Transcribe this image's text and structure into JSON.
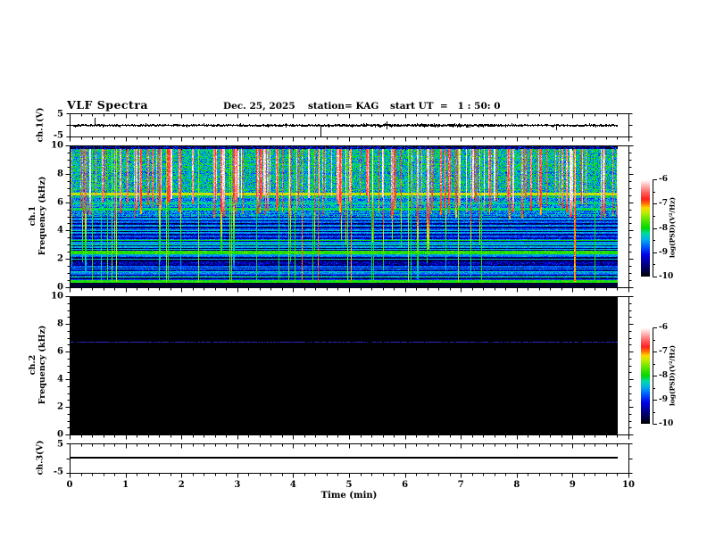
{
  "header": {
    "title": "VLF Spectra",
    "date": "Dec. 25, 2025",
    "station": "station= KAG",
    "start_ut": "start UT  =   1 : 50: 0"
  },
  "chart_data": {
    "type": "multi-panel-spectrogram",
    "x": {
      "label": "Time (min)",
      "range": [
        0,
        10
      ],
      "data_end": 9.8,
      "tick_labels": [
        "0",
        "1",
        "2",
        "3",
        "4",
        "5",
        "6",
        "7",
        "8",
        "9",
        "10"
      ],
      "minor_step": 0.2
    },
    "colorbar": {
      "label": "log(PSD)(V²/Hz)",
      "tick_labels": [
        "-6",
        "-7",
        "-8",
        "-9",
        "-10"
      ],
      "value_range": [
        -10,
        -6
      ],
      "colormap_stops": [
        [
          0.0,
          "#000000"
        ],
        [
          0.06,
          "#000048"
        ],
        [
          0.14,
          "#000098"
        ],
        [
          0.22,
          "#0000e8"
        ],
        [
          0.3,
          "#0054ff"
        ],
        [
          0.38,
          "#00b0e8"
        ],
        [
          0.44,
          "#00d8a8"
        ],
        [
          0.5,
          "#00d800"
        ],
        [
          0.58,
          "#58e400"
        ],
        [
          0.66,
          "#c0ec00"
        ],
        [
          0.71,
          "#ffd800"
        ],
        [
          0.75,
          "#ff7800"
        ],
        [
          0.8,
          "#ff2020"
        ],
        [
          0.86,
          "#ff5858"
        ],
        [
          0.92,
          "#ffa0a0"
        ],
        [
          0.97,
          "#ffdcdc"
        ],
        [
          1.0,
          "#ffffff"
        ]
      ]
    },
    "panels": [
      {
        "id": "ch1_wave",
        "type": "line",
        "ylabel": "ch.1(V)",
        "ylim": [
          -5,
          5
        ],
        "ytick_labels": [
          "5",
          "-5"
        ],
        "baseline_v": 0,
        "noise_amp_v": 0.35,
        "spikes": [
          {
            "t": 0.45,
            "a": 3.0
          },
          {
            "t": 0.9,
            "a": -0.9
          },
          {
            "t": 1.35,
            "a": 0.8
          },
          {
            "t": 2.1,
            "a": -0.6
          },
          {
            "t": 2.75,
            "a": 0.5
          },
          {
            "t": 3.4,
            "a": -0.5
          },
          {
            "t": 4.49,
            "a": -4.6
          },
          {
            "t": 5.3,
            "a": 0.9
          },
          {
            "t": 5.75,
            "a": -0.8
          },
          {
            "t": 6.3,
            "a": 0.6
          },
          {
            "t": 7.1,
            "a": -0.6
          },
          {
            "t": 7.9,
            "a": 0.7
          },
          {
            "t": 8.7,
            "a": -2.0
          },
          {
            "t": 9.3,
            "a": 0.6
          }
        ]
      },
      {
        "id": "ch1_spec",
        "type": "heatmap",
        "ylabel": [
          "ch.1",
          "Frequency (kHz)"
        ],
        "ylim": [
          0,
          10
        ],
        "ytick_labels": [
          "10",
          "8",
          "6",
          "4",
          "2",
          "0"
        ],
        "value_range": [
          -10,
          -6
        ],
        "seed": 1337,
        "bands": [
          {
            "f_min": 9.72,
            "f_max": 10.0,
            "base": -9.4,
            "noise": 0.7
          },
          {
            "f_min": 6.3,
            "f_max": 9.72,
            "base": -8.35,
            "noise": 0.55
          },
          {
            "f_min": 5.0,
            "f_max": 6.3,
            "base": -8.6,
            "noise": 0.45
          },
          {
            "f_min": 1.8,
            "f_max": 2.15,
            "base": -9.65,
            "noise": 0.3
          },
          {
            "f_min": 0.0,
            "f_max": 0.32,
            "base": -9.9,
            "noise": 0.15
          },
          {
            "f_min": 0.0,
            "f_max": 5.0,
            "base": -9.45,
            "noise": 0.5
          }
        ],
        "h_lines": [
          {
            "f": 6.55,
            "v": -7.35,
            "w": 0.1
          },
          {
            "f": 5.9,
            "v": -8.25,
            "w": 0.06
          },
          {
            "f": 5.5,
            "v": -8.15,
            "w": 0.07
          },
          {
            "f": 4.85,
            "v": -8.55,
            "w": 0.06
          },
          {
            "f": 4.6,
            "v": -8.7,
            "w": 0.06
          },
          {
            "f": 4.35,
            "v": -8.55,
            "w": 0.06
          },
          {
            "f": 4.1,
            "v": -8.75,
            "w": 0.06
          },
          {
            "f": 3.85,
            "v": -8.6,
            "w": 0.06
          },
          {
            "f": 3.6,
            "v": -8.8,
            "w": 0.06
          },
          {
            "f": 3.35,
            "v": -8.65,
            "w": 0.06
          },
          {
            "f": 3.1,
            "v": -8.75,
            "w": 0.06
          },
          {
            "f": 2.85,
            "v": -8.5,
            "w": 0.06
          },
          {
            "f": 2.45,
            "v": -7.85,
            "w": 0.11
          },
          {
            "f": 2.2,
            "v": -8.7,
            "w": 0.06
          },
          {
            "f": 1.45,
            "v": -8.8,
            "w": 0.06
          },
          {
            "f": 1.0,
            "v": -8.6,
            "w": 0.06
          },
          {
            "f": 0.75,
            "v": -8.75,
            "w": 0.06
          },
          {
            "f": 0.4,
            "v": -7.9,
            "w": 0.09
          }
        ],
        "streaks": {
          "count": 150,
          "top_khz": 9.72,
          "bot_range": [
            4.7,
            6.6
          ],
          "deep_fraction": 0.2,
          "deep_bot_range": [
            0.4,
            3.4
          ],
          "peak_range": [
            -6.8,
            -6.1
          ]
        },
        "v_lines": {
          "count": 24,
          "value_range": [
            -8.3,
            -7.4
          ],
          "red_count": 5,
          "red_value": -7.0
        }
      },
      {
        "id": "ch2_spec",
        "type": "heatmap",
        "ylabel": [
          "ch.2",
          "Frequency (kHz)"
        ],
        "ylim": [
          0,
          10
        ],
        "ytick_labels": [
          "10",
          "8",
          "6",
          "4",
          "2",
          "0"
        ],
        "value_range": [
          -10,
          -6
        ],
        "background_value": -10,
        "seed": 77,
        "h_lines": [
          {
            "f": 6.7,
            "v": -9.0,
            "w": 0.04
          }
        ],
        "line_color": "#2828cc"
      },
      {
        "id": "ch3_wave",
        "type": "line",
        "ylabel": "ch.3(V)",
        "ylim": [
          -5,
          5
        ],
        "ytick_labels": [
          "5",
          "-5"
        ],
        "constant_v": 0
      }
    ]
  }
}
